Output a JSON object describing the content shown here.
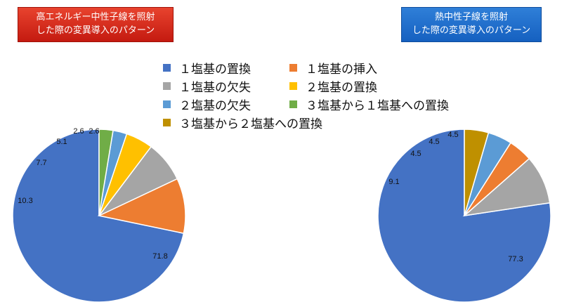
{
  "titles": {
    "left": [
      "高エネルギー中性子線を照射",
      "した際の変異導入のパターン"
    ],
    "right": [
      "熱中性子線を照射",
      "した際の変異導入のパターン"
    ],
    "left_bg": "#d62b1c",
    "right_bg": "#1f6fd0"
  },
  "legend": [
    {
      "label": "１塩基の置換",
      "color": "#4472c4"
    },
    {
      "label": "１塩基の挿入",
      "color": "#ed7d31"
    },
    {
      "label": "１塩基の欠失",
      "color": "#a5a5a5"
    },
    {
      "label": "２塩基の置換",
      "color": "#ffc000"
    },
    {
      "label": "２塩基の欠失",
      "color": "#5b9bd5"
    },
    {
      "label": "３塩基から１塩基への置換",
      "color": "#70ad47"
    },
    {
      "label": "３塩基から２塩基への置換",
      "color": "#bf9000"
    }
  ],
  "chart_data": [
    {
      "type": "pie",
      "title": "高エネルギー中性子線を照射した際の変異導入のパターン",
      "start": "12 o'clock, counter-clockwise",
      "slices": [
        {
          "name": "１塩基の置換",
          "value": 71.8,
          "label": "71.8",
          "color": "#4472c4"
        },
        {
          "name": "１塩基の挿入",
          "value": 10.3,
          "label": "10.3",
          "color": "#ed7d31"
        },
        {
          "name": "１塩基の欠失",
          "value": 7.7,
          "label": "7.7",
          "color": "#a5a5a5"
        },
        {
          "name": "２塩基の置換",
          "value": 5.1,
          "label": "5.1",
          "color": "#ffc000"
        },
        {
          "name": "２塩基の欠失",
          "value": 2.6,
          "label": "2.6",
          "color": "#5b9bd5"
        },
        {
          "name": "３塩基から１塩基への置換",
          "value": 2.6,
          "label": "2.6",
          "color": "#70ad47"
        }
      ]
    },
    {
      "type": "pie",
      "title": "熱中性子線を照射した際の変異導入のパターン",
      "start": "12 o'clock, counter-clockwise",
      "slices": [
        {
          "name": "１塩基の置換",
          "value": 77.3,
          "label": "77.3",
          "color": "#4472c4"
        },
        {
          "name": "１塩基の欠失",
          "value": 9.1,
          "label": "9.1",
          "color": "#a5a5a5"
        },
        {
          "name": "１塩基の挿入",
          "value": 4.5,
          "label": "4.5",
          "color": "#ed7d31"
        },
        {
          "name": "２塩基の欠失",
          "value": 4.5,
          "label": "4.5",
          "color": "#5b9bd5"
        },
        {
          "name": "３塩基から２塩基への置換",
          "value": 4.5,
          "label": "4.5",
          "color": "#bf9000"
        }
      ]
    }
  ]
}
